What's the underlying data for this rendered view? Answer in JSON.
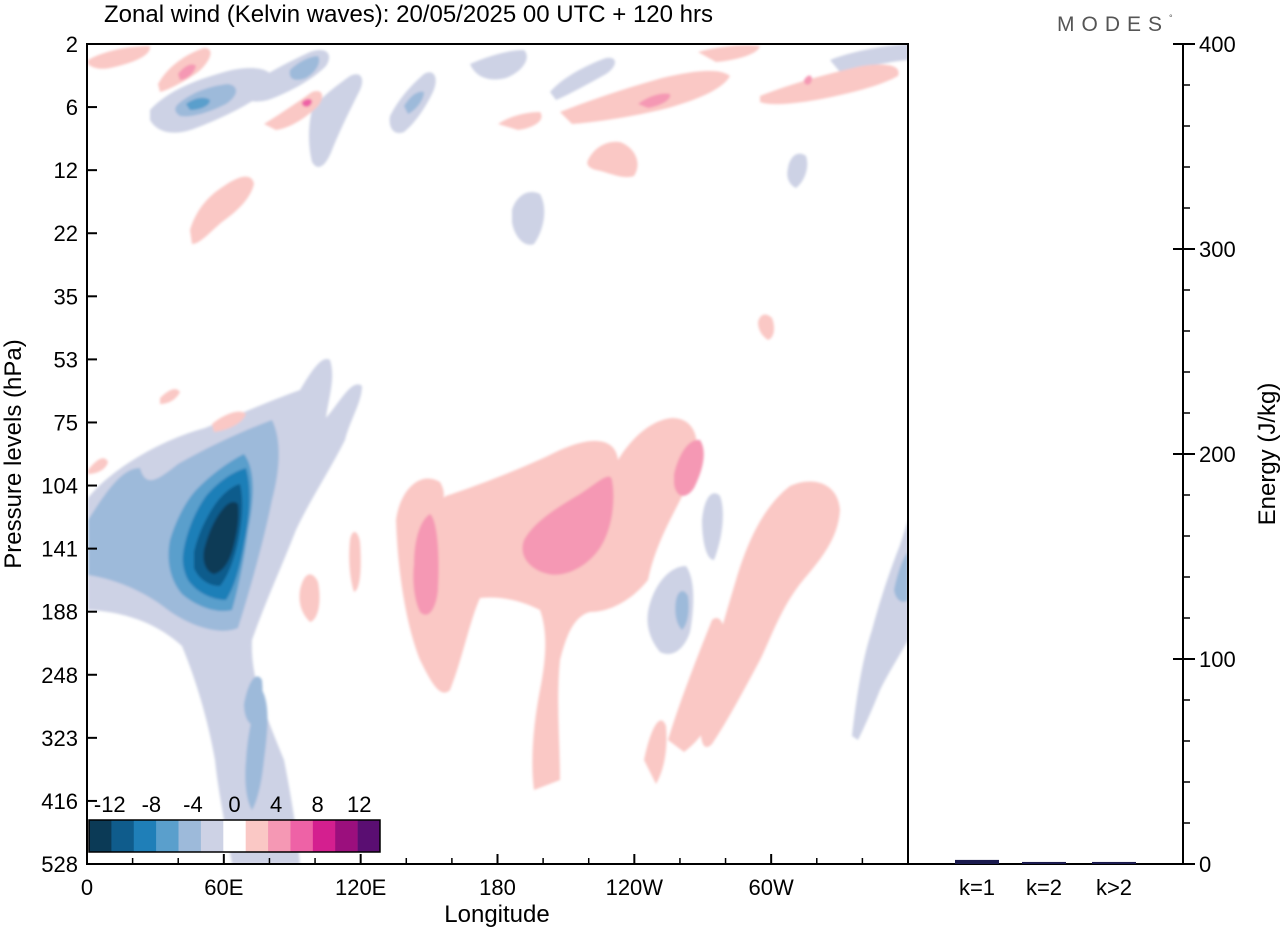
{
  "chart_data": [
    {
      "type": "heatmap",
      "title": "Zonal wind (Kelvin waves):  20/05/2025  00 UTC  + 120 hrs",
      "xlabel": "Longitude",
      "ylabel": "Pressure levels (hPa)",
      "x_ticks": [
        "0",
        "60E",
        "120E",
        "180",
        "120W",
        "60W"
      ],
      "x_tick_values": [
        0,
        60,
        120,
        180,
        240,
        300
      ],
      "xlim": [
        0,
        360
      ],
      "y_ticks": [
        "2",
        "6",
        "12",
        "22",
        "35",
        "53",
        "75",
        "104",
        "141",
        "188",
        "248",
        "323",
        "416",
        "528"
      ],
      "colorbar": {
        "labels": [
          "-12",
          "-8",
          "-4",
          "0",
          "4",
          "8",
          "12"
        ],
        "label_values": [
          -12,
          -8,
          -4,
          0,
          4,
          8,
          12
        ],
        "levels": [
          -14,
          -12,
          -10,
          -8,
          -6,
          -4,
          -2,
          2,
          4,
          6,
          8,
          10,
          12,
          14
        ],
        "colors": [
          "#0b3a56",
          "#0f5c8c",
          "#1f7fb8",
          "#5a9fcc",
          "#9dbada",
          "#cdd2e5",
          "#ffffff",
          "#fac8c5",
          "#f598b4",
          "#ee62a6",
          "#d41f8f",
          "#9b0f7d",
          "#5a0e72"
        ]
      },
      "features": [
        {
          "sign": "negative",
          "lon": 60,
          "pressure": 141,
          "peak": -14
        },
        {
          "sign": "negative",
          "lon": 10,
          "pressure": 141,
          "peak": -6
        },
        {
          "sign": "negative",
          "lon": 260,
          "pressure": 188,
          "peak": -6
        },
        {
          "sign": "negative",
          "lon": 357,
          "pressure": 160,
          "peak": -6
        },
        {
          "sign": "negative",
          "lon": 45,
          "pressure": 6,
          "peak": -8
        },
        {
          "sign": "negative",
          "lon": 97,
          "pressure": 3,
          "peak": -8
        },
        {
          "sign": "positive",
          "lon": 200,
          "pressure": 130,
          "peak": 8
        },
        {
          "sign": "positive",
          "lon": 150,
          "pressure": 150,
          "peak": 6
        },
        {
          "sign": "positive",
          "lon": 262,
          "pressure": 95,
          "peak": 8
        },
        {
          "sign": "positive",
          "lon": 98,
          "pressure": 6,
          "peak": 8
        },
        {
          "sign": "positive",
          "lon": 250,
          "pressure": 5,
          "peak": 8
        },
        {
          "sign": "positive",
          "lon": 320,
          "pressure": 3,
          "peak": 6
        }
      ]
    },
    {
      "type": "bar",
      "ylabel": "Energy (J/kg)",
      "categories": [
        "k=1",
        "k=2",
        "k>2"
      ],
      "values": [
        2,
        1,
        1
      ],
      "ylim": [
        0,
        400
      ],
      "y_ticks": [
        "0",
        "100",
        "200",
        "300",
        "400"
      ],
      "y_tick_values": [
        0,
        100,
        200,
        300,
        400
      ],
      "bar_color": "#1a1a4e"
    }
  ],
  "brand": "MODES",
  "brand_mark": "°"
}
